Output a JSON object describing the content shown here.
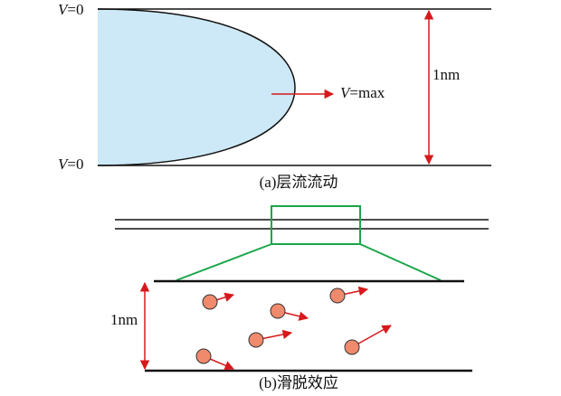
{
  "laminar": {
    "top_label": {
      "var": "V",
      "eq": "=0"
    },
    "bottom_label": {
      "var": "V",
      "eq": "=0"
    },
    "center_label": {
      "var": "V",
      "eq": "=max"
    },
    "width_label": "1nm",
    "caption": "(a)层流流动"
  },
  "slip": {
    "width_label": "1nm",
    "caption": "(b)滑脱效应"
  }
}
